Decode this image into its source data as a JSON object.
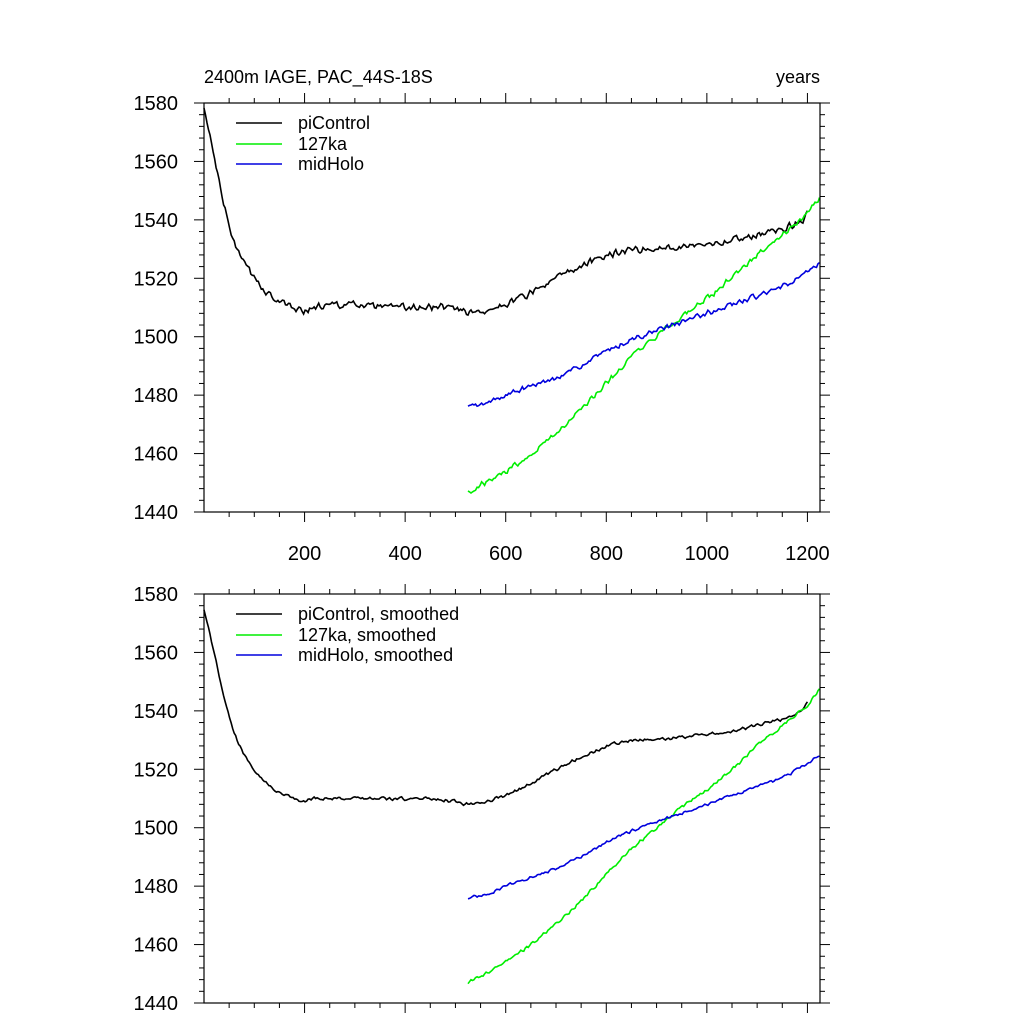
{
  "chart_data": [
    {
      "type": "line",
      "title": "2400m IAGE, PAC_44S-18S",
      "units_label": "years",
      "xlim": [
        0,
        1225
      ],
      "ylim": [
        1440,
        1580
      ],
      "xticks": [
        200,
        400,
        600,
        800,
        1000,
        1200
      ],
      "xtick_labels": [
        "200",
        "400",
        "600",
        "800",
        "1000",
        "1200"
      ],
      "yticks": [
        1440,
        1460,
        1480,
        1500,
        1520,
        1540,
        1560,
        1580
      ],
      "ytick_labels": [
        "1440",
        "1460",
        "1480",
        "1500",
        "1520",
        "1540",
        "1560",
        "1580"
      ],
      "legend_position": "top-left",
      "series": [
        {
          "name": "piControl",
          "color": "#000000",
          "x": [
            0,
            10,
            20,
            30,
            40,
            50,
            60,
            80,
            100,
            120,
            140,
            160,
            180,
            200,
            220,
            250,
            300,
            350,
            400,
            450,
            500,
            520,
            540,
            560,
            580,
            600,
            650,
            700,
            750,
            800,
            850,
            880,
            900,
            950,
            1000,
            1050,
            1100,
            1150,
            1190,
            1200
          ],
          "y": [
            1578,
            1570,
            1562,
            1553,
            1545,
            1538,
            1532,
            1525,
            1520,
            1516,
            1513,
            1511,
            1510,
            1509,
            1510,
            1511,
            1511,
            1510,
            1510,
            1510,
            1510,
            1509,
            1508,
            1509,
            1510,
            1511,
            1515,
            1520,
            1524,
            1528,
            1530,
            1530,
            1530,
            1531,
            1532,
            1533,
            1535,
            1537,
            1540,
            1543
          ],
          "noise": 1.5
        },
        {
          "name": "127ka",
          "color": "#00ee00",
          "x": [
            525,
            560,
            600,
            650,
            700,
            750,
            800,
            850,
            900,
            950,
            1000,
            1050,
            1100,
            1150,
            1200,
            1225
          ],
          "y": [
            1447,
            1450,
            1454,
            1460,
            1467,
            1475,
            1484,
            1493,
            1500,
            1507,
            1513,
            1520,
            1528,
            1535,
            1542,
            1548
          ],
          "noise": 1.3
        },
        {
          "name": "midHolo",
          "color": "#0000dd",
          "x": [
            525,
            560,
            600,
            650,
            700,
            750,
            800,
            850,
            900,
            950,
            1000,
            1050,
            1100,
            1150,
            1200,
            1225
          ],
          "y": [
            1476,
            1477,
            1480,
            1483,
            1486,
            1490,
            1495,
            1499,
            1502,
            1505,
            1508,
            1511,
            1514,
            1517,
            1522,
            1525
          ],
          "noise": 1.1
        }
      ]
    },
    {
      "type": "line",
      "title": "",
      "xlim": [
        0,
        1225
      ],
      "ylim": [
        1440,
        1580
      ],
      "xticks": [
        200,
        400,
        600,
        800,
        1000,
        1200
      ],
      "xtick_labels": [],
      "yticks": [
        1440,
        1460,
        1480,
        1500,
        1520,
        1540,
        1560,
        1580
      ],
      "ytick_labels": [
        "1440",
        "1460",
        "1480",
        "1500",
        "1520",
        "1540",
        "1560",
        "1580"
      ],
      "legend_position": "top-left",
      "series": [
        {
          "name": "piControl, smoothed",
          "color": "#000000",
          "x": [
            0,
            10,
            20,
            30,
            40,
            50,
            60,
            80,
            100,
            120,
            140,
            160,
            180,
            200,
            220,
            250,
            300,
            350,
            400,
            450,
            500,
            520,
            540,
            560,
            580,
            600,
            650,
            700,
            750,
            800,
            850,
            880,
            900,
            950,
            1000,
            1050,
            1100,
            1150,
            1190,
            1200
          ],
          "y": [
            1575,
            1568,
            1560,
            1552,
            1545,
            1538,
            1532,
            1525,
            1520,
            1516,
            1513,
            1511,
            1510,
            1509,
            1510,
            1510,
            1510,
            1510,
            1510,
            1510,
            1509,
            1508,
            1508,
            1509,
            1510,
            1511,
            1515,
            1520,
            1524,
            1528,
            1530,
            1530,
            1530,
            1531,
            1532,
            1533,
            1535,
            1537,
            1540,
            1543
          ],
          "noise": 0.7
        },
        {
          "name": "127ka, smoothed",
          "color": "#00ee00",
          "x": [
            525,
            560,
            600,
            650,
            700,
            750,
            800,
            850,
            900,
            950,
            1000,
            1050,
            1100,
            1150,
            1200,
            1225
          ],
          "y": [
            1447,
            1450,
            1454,
            1460,
            1467,
            1475,
            1484,
            1493,
            1500,
            1507,
            1513,
            1520,
            1528,
            1535,
            1542,
            1548
          ],
          "noise": 0.7
        },
        {
          "name": "midHolo, smoothed",
          "color": "#0000dd",
          "x": [
            525,
            560,
            600,
            650,
            700,
            750,
            800,
            850,
            900,
            950,
            1000,
            1050,
            1100,
            1150,
            1200,
            1225
          ],
          "y": [
            1476,
            1477,
            1480,
            1483,
            1486,
            1490,
            1495,
            1499,
            1502,
            1505,
            1508,
            1511,
            1514,
            1517,
            1522,
            1525
          ],
          "noise": 0.6
        }
      ]
    }
  ]
}
